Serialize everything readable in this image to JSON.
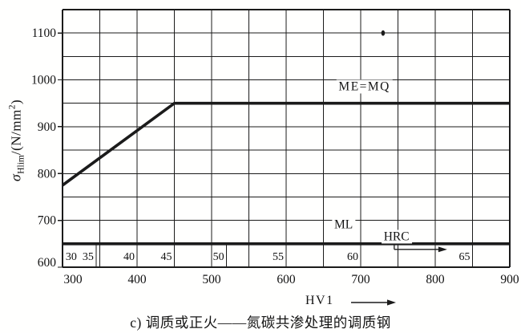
{
  "figure": {
    "caption": "c) 调质或正火——氮碳共渗处理的调质钢",
    "x_axis": {
      "title": "HV1"
    },
    "y_axis": {
      "sigma": "σ",
      "subscript": "Hlim",
      "mid": "/(N/mm",
      "sup": "2",
      "close": ")"
    }
  },
  "colors": {
    "ink": "#1b1b1b",
    "paper": "#fffffe"
  },
  "chart_data": {
    "type": "line",
    "title": "",
    "xlabel": "HV1",
    "ylabel": "σHlim/(N/mm²)",
    "xlim": [
      300,
      900
    ],
    "ylim": [
      600,
      1150
    ],
    "grid": "on",
    "grid_step_x": 50,
    "grid_step_y": 50,
    "x_tick_labels": [
      300,
      400,
      500,
      600,
      700,
      800,
      900
    ],
    "y_tick_labels": [
      600,
      700,
      800,
      900,
      1000,
      1100
    ],
    "series": [
      {
        "name": "ME=MQ",
        "points": [
          [
            300,
            775
          ],
          [
            450,
            950
          ],
          [
            900,
            950
          ]
        ]
      },
      {
        "name": "ML",
        "points": [
          [
            300,
            650
          ],
          [
            900,
            650
          ]
        ]
      }
    ],
    "annotations": [
      {
        "id": "me-mq",
        "text": "ME=MQ",
        "hv": 705,
        "sigma": 986
      },
      {
        "id": "ml",
        "text": "ML",
        "hv": 677,
        "sigma": 691
      },
      {
        "id": "hrc",
        "text": "HRC",
        "hv": 748,
        "sigma": 665
      }
    ],
    "hrc_scale": {
      "band_sigma": [
        600,
        650
      ],
      "entries": [
        {
          "hrc": 30,
          "hv": 302,
          "align": "start"
        },
        {
          "hrc": 35,
          "hv": 345,
          "align": "end"
        },
        {
          "hrc": 40,
          "hv": 400,
          "align": "end"
        },
        {
          "hrc": 45,
          "hv": 450,
          "align": "end"
        },
        {
          "hrc": 50,
          "hv": 520,
          "align": "end"
        },
        {
          "hrc": 55,
          "hv": 600,
          "align": "end"
        },
        {
          "hrc": 60,
          "hv": 700,
          "align": "end"
        },
        {
          "hrc": 65,
          "hv": 850,
          "align": "end"
        }
      ]
    },
    "hrc_arrow": {
      "riser_hv": 745,
      "from_sigma": 650,
      "to_sigma": 638,
      "to_hv": 816
    },
    "print_artifact": {
      "hv": 730,
      "sigma": 1100
    }
  }
}
